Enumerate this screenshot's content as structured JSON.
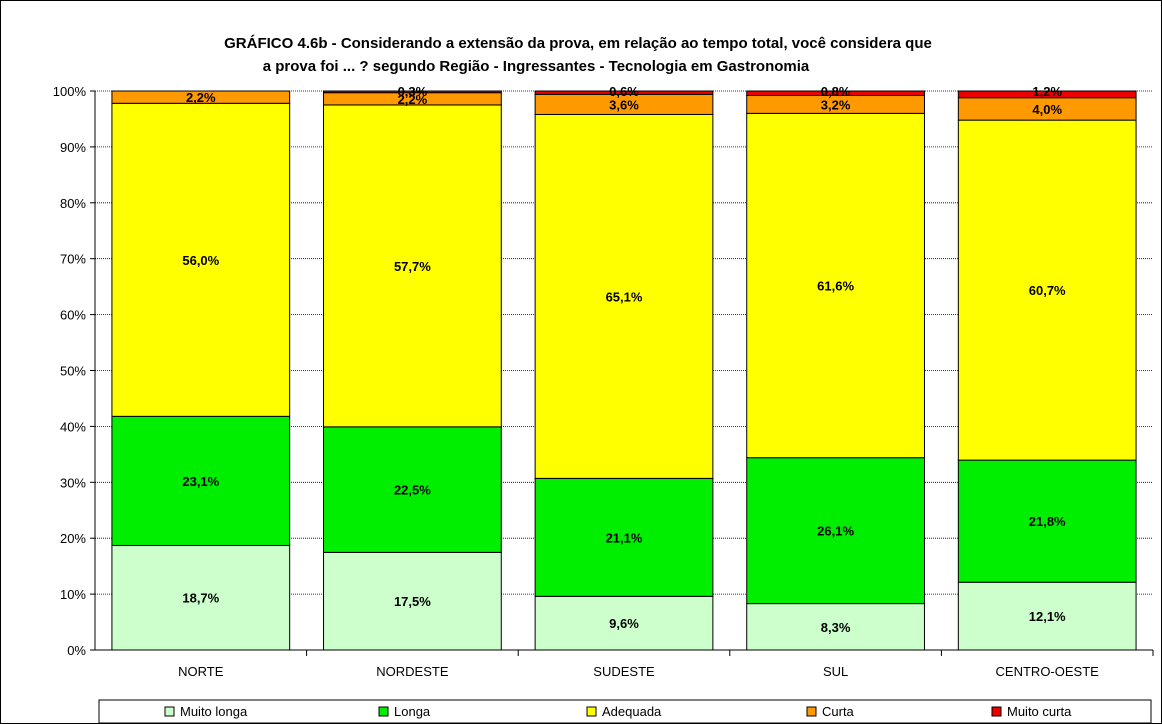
{
  "chart_data": {
    "type": "bar",
    "stacked": true,
    "percent": true,
    "title_line1": "GRÁFICO 4.6b - Considerando a extensão da prova, em relação ao tempo total, você considera que",
    "title_line2": "a prova foi ... ? segundo Região  - Ingressantes - Tecnologia em Gastronomia",
    "categories": [
      "NORTE",
      "NORDESTE",
      "SUDESTE",
      "SUL",
      "CENTRO-OESTE"
    ],
    "ylim": [
      0,
      100
    ],
    "yticks": [
      "0%",
      "10%",
      "20%",
      "30%",
      "40%",
      "50%",
      "60%",
      "70%",
      "80%",
      "90%",
      "100%"
    ],
    "grid": true,
    "legend_position": "bottom",
    "series": [
      {
        "name": "Muito longa",
        "color": "#ccffcc",
        "values": [
          18.7,
          17.5,
          9.6,
          8.3,
          12.1
        ],
        "labels": [
          "18,7%",
          "17,5%",
          "9,6%",
          "8,3%",
          "12,1%"
        ]
      },
      {
        "name": "Longa",
        "color": "#00ee00",
        "values": [
          23.1,
          22.5,
          21.1,
          26.1,
          21.8
        ],
        "labels": [
          "23,1%",
          "22,5%",
          "21,1%",
          "26,1%",
          "21,8%"
        ]
      },
      {
        "name": "Adequada",
        "color": "#ffff00",
        "values": [
          56.0,
          57.7,
          65.1,
          61.6,
          60.7
        ],
        "labels": [
          "56,0%",
          "57,7%",
          "65,1%",
          "61,6%",
          "60,7%"
        ]
      },
      {
        "name": "Curta",
        "color": "#ff9900",
        "values": [
          2.2,
          2.2,
          3.6,
          3.2,
          4.0
        ],
        "labels": [
          "2,2%",
          "2,2%",
          "3,6%",
          "3,2%",
          "4,0%"
        ]
      },
      {
        "name": "Muito curta",
        "color": "#ee0000",
        "values": [
          0.0,
          0.3,
          0.6,
          0.8,
          1.2
        ],
        "labels": [
          "",
          "0,3%",
          "0,6%",
          "0,8%",
          "1,2%"
        ]
      }
    ]
  }
}
